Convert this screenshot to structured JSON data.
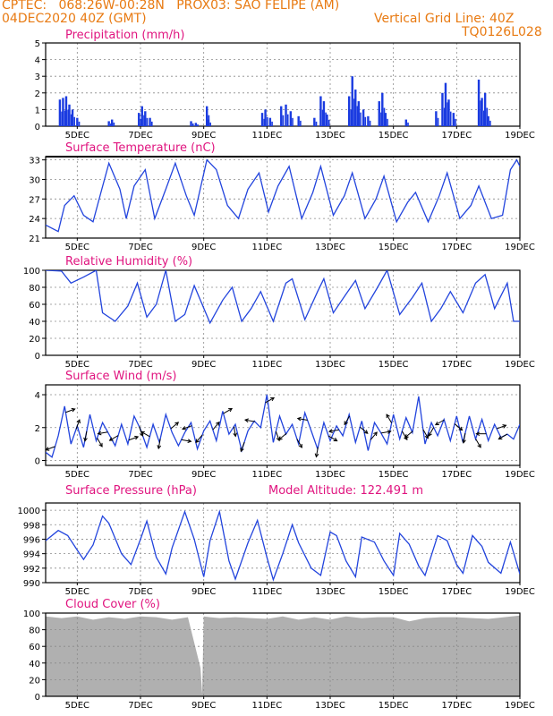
{
  "header": {
    "line1": "CPTEC:   068:26W-00:28N   PROX03: SAO FELIPE (AM)",
    "date": "04DEC2020 40Z (GMT)",
    "grid_line": "Vertical Grid Line: 40Z",
    "code": "TQ0126L028"
  },
  "colors": {
    "header": "#e87a12",
    "title": "#e0147f",
    "line": "#2244dd",
    "bar": "#1a3be0",
    "cloud": "#b0b0b0"
  },
  "x_ticks": [
    "5DEC",
    "7DEC",
    "9DEC",
    "11DEC",
    "13DEC",
    "15DEC",
    "17DEC",
    "19DEC"
  ],
  "chart_data": [
    {
      "type": "bar",
      "title": "Precipitation (mm/h)",
      "ylim": [
        0,
        5
      ],
      "yticks": [
        0,
        1,
        2,
        3,
        4,
        5
      ],
      "x_start": 4.0,
      "x_end": 19.0,
      "series": [
        {
          "x": [],
          "values": []
        }
      ],
      "peaks": [
        [
          4.45,
          1.6
        ],
        [
          4.55,
          1.7
        ],
        [
          4.65,
          1.8
        ],
        [
          4.75,
          1.3
        ],
        [
          4.85,
          1.0
        ],
        [
          5.0,
          0.5
        ],
        [
          6.0,
          0.3
        ],
        [
          6.1,
          0.4
        ],
        [
          6.95,
          0.8
        ],
        [
          7.05,
          1.2
        ],
        [
          7.15,
          0.9
        ],
        [
          7.3,
          0.5
        ],
        [
          8.6,
          0.3
        ],
        [
          8.75,
          0.2
        ],
        [
          9.1,
          1.2
        ],
        [
          9.15,
          0.4
        ],
        [
          10.85,
          0.8
        ],
        [
          10.95,
          1.0
        ],
        [
          11.1,
          0.5
        ],
        [
          11.45,
          1.2
        ],
        [
          11.6,
          1.3
        ],
        [
          11.75,
          0.9
        ],
        [
          12.0,
          0.6
        ],
        [
          12.5,
          0.5
        ],
        [
          12.7,
          1.8
        ],
        [
          12.8,
          1.5
        ],
        [
          12.9,
          0.7
        ],
        [
          13.6,
          1.8
        ],
        [
          13.7,
          3.0
        ],
        [
          13.8,
          2.2
        ],
        [
          13.9,
          1.5
        ],
        [
          14.05,
          1.0
        ],
        [
          14.2,
          0.6
        ],
        [
          14.55,
          1.5
        ],
        [
          14.65,
          2.0
        ],
        [
          14.75,
          0.8
        ],
        [
          15.4,
          0.4
        ],
        [
          16.35,
          0.9
        ],
        [
          16.55,
          2.0
        ],
        [
          16.65,
          2.6
        ],
        [
          16.75,
          1.6
        ],
        [
          16.9,
          0.8
        ],
        [
          17.7,
          2.8
        ],
        [
          17.8,
          1.7
        ],
        [
          17.9,
          2.0
        ],
        [
          18.0,
          0.6
        ]
      ]
    },
    {
      "type": "line",
      "title": "Surface Temperature (nC)",
      "ylim": [
        21,
        33.5
      ],
      "yticks": [
        21,
        24,
        27,
        30,
        33
      ],
      "x": [
        4.0,
        4.4,
        4.6,
        4.9,
        5.2,
        5.5,
        5.75,
        6.0,
        6.35,
        6.55,
        6.8,
        7.15,
        7.45,
        7.8,
        8.1,
        8.45,
        8.7,
        9.1,
        9.4,
        9.75,
        10.1,
        10.4,
        10.75,
        11.05,
        11.35,
        11.7,
        12.1,
        12.45,
        12.7,
        13.1,
        13.45,
        13.7,
        14.1,
        14.45,
        14.7,
        15.1,
        15.45,
        15.7,
        16.1,
        16.45,
        16.7,
        17.1,
        17.45,
        17.7,
        18.1,
        18.45,
        18.7,
        18.9,
        19.0
      ],
      "y": [
        23.0,
        22.0,
        26.0,
        27.5,
        24.5,
        23.5,
        28.0,
        32.5,
        28.5,
        24.0,
        29.0,
        31.5,
        24.0,
        28.5,
        32.5,
        27.5,
        24.5,
        33.0,
        31.5,
        26.0,
        24.0,
        28.5,
        31.0,
        25.0,
        29.0,
        32.0,
        24.0,
        28.0,
        32.0,
        24.5,
        27.5,
        31.0,
        24.0,
        27.0,
        30.5,
        23.5,
        26.5,
        28.0,
        23.5,
        27.5,
        31.0,
        24.0,
        26.0,
        29.0,
        24.0,
        24.5,
        31.5,
        33.0,
        32.0
      ]
    },
    {
      "type": "line",
      "title": "Relative Humidity (%)",
      "ylim": [
        0,
        100
      ],
      "yticks": [
        0,
        20,
        40,
        60,
        80,
        100
      ],
      "x": [
        4.0,
        4.5,
        4.8,
        5.2,
        5.6,
        5.8,
        6.2,
        6.6,
        6.9,
        7.2,
        7.5,
        7.8,
        8.1,
        8.4,
        8.7,
        9.2,
        9.6,
        9.9,
        10.2,
        10.5,
        10.8,
        11.2,
        11.6,
        11.8,
        12.2,
        12.6,
        12.8,
        13.1,
        13.5,
        13.8,
        14.1,
        14.5,
        14.8,
        15.2,
        15.6,
        15.9,
        16.2,
        16.5,
        16.8,
        17.2,
        17.6,
        17.9,
        18.2,
        18.6,
        18.8,
        19.0
      ],
      "y": [
        100,
        99,
        85,
        92,
        100,
        50,
        40,
        58,
        85,
        45,
        60,
        100,
        40,
        48,
        82,
        38,
        65,
        80,
        40,
        55,
        75,
        40,
        85,
        90,
        42,
        75,
        90,
        50,
        72,
        88,
        55,
        80,
        100,
        48,
        68,
        85,
        40,
        55,
        75,
        50,
        85,
        95,
        55,
        85,
        40,
        40
      ]
    },
    {
      "type": "line",
      "title": "Surface Wind (m/s)",
      "ylim": [
        -0.3,
        4.6
      ],
      "yticks": [
        0,
        2,
        4
      ],
      "x": [
        4.0,
        4.2,
        4.4,
        4.6,
        4.8,
        5.0,
        5.2,
        5.4,
        5.6,
        5.8,
        6.0,
        6.2,
        6.4,
        6.6,
        6.8,
        7.0,
        7.2,
        7.4,
        7.6,
        7.8,
        8.0,
        8.2,
        8.4,
        8.6,
        8.8,
        9.0,
        9.2,
        9.4,
        9.6,
        9.8,
        10.0,
        10.2,
        10.4,
        10.6,
        10.8,
        11.0,
        11.2,
        11.4,
        11.6,
        11.8,
        12.0,
        12.2,
        12.4,
        12.6,
        12.8,
        13.0,
        13.2,
        13.4,
        13.6,
        13.8,
        14.0,
        14.2,
        14.4,
        14.6,
        14.8,
        15.0,
        15.2,
        15.4,
        15.6,
        15.8,
        16.0,
        16.2,
        16.4,
        16.6,
        16.8,
        17.0,
        17.2,
        17.4,
        17.6,
        17.8,
        18.0,
        18.2,
        18.4,
        18.6,
        18.8,
        19.0
      ],
      "y": [
        0.5,
        0.2,
        1.5,
        3.3,
        1.0,
        2.1,
        0.8,
        2.8,
        1.2,
        2.3,
        1.6,
        0.9,
        2.2,
        1.0,
        2.7,
        1.9,
        0.8,
        2.2,
        1.1,
        2.8,
        1.7,
        0.9,
        1.7,
        2.3,
        0.7,
        1.8,
        2.4,
        1.2,
        3.0,
        1.6,
        2.2,
        0.6,
        1.8,
        2.4,
        2.0,
        4.0,
        1.1,
        2.7,
        1.6,
        2.2,
        1.0,
        2.9,
        1.8,
        0.7,
        2.3,
        1.2,
        2.1,
        1.5,
        2.8,
        1.1,
        2.4,
        0.6,
        2.3,
        1.7,
        1.0,
        2.8,
        1.3,
        2.6,
        1.7,
        3.9,
        1.0,
        2.3,
        1.5,
        2.5,
        1.2,
        2.7,
        1.1,
        2.7,
        1.3,
        2.5,
        1.2,
        2.2,
        1.4,
        1.6,
        1.3,
        2.2
      ],
      "arrows_deg": [
        200,
        20,
        70,
        260,
        300,
        190,
        210,
        20,
        290,
        150,
        260,
        40,
        350,
        200,
        230,
        50,
        30,
        280,
        250,
        170,
        30,
        290,
        220,
        300,
        170,
        260,
        330,
        190,
        240,
        320,
        50,
        10,
        120,
        300,
        220,
        300,
        240,
        210,
        320,
        260,
        300,
        180,
        20,
        210
      ]
    },
    {
      "type": "line",
      "title": "Surface Pressure (hPa)",
      "annotation": "Model Altitude: 122.491 m",
      "ylim": [
        990,
        1001
      ],
      "yticks": [
        990,
        992,
        994,
        996,
        998,
        1000
      ],
      "x": [
        4.0,
        4.4,
        4.7,
        5.0,
        5.2,
        5.5,
        5.8,
        6.0,
        6.4,
        6.7,
        7.0,
        7.2,
        7.5,
        7.8,
        8.0,
        8.4,
        8.7,
        9.0,
        9.2,
        9.5,
        9.8,
        10.0,
        10.4,
        10.7,
        11.0,
        11.2,
        11.5,
        11.8,
        12.0,
        12.4,
        12.7,
        13.0,
        13.2,
        13.5,
        13.8,
        14.0,
        14.4,
        14.7,
        15.0,
        15.2,
        15.5,
        15.8,
        16.0,
        16.4,
        16.7,
        17.0,
        17.2,
        17.5,
        17.8,
        18.0,
        18.4,
        18.7,
        19.0
      ],
      "y": [
        995.8,
        997.2,
        996.5,
        994.5,
        993.2,
        995.2,
        999.2,
        998.2,
        994.0,
        992.5,
        996.0,
        998.5,
        993.5,
        991.2,
        994.8,
        999.8,
        996.0,
        990.8,
        995.8,
        999.8,
        993.0,
        990.5,
        995.5,
        998.6,
        993.5,
        990.4,
        994.0,
        998.0,
        995.5,
        992.0,
        991.0,
        997.0,
        996.5,
        993.0,
        990.8,
        996.3,
        995.6,
        993.0,
        991.0,
        996.8,
        995.3,
        992.3,
        991.0,
        996.5,
        995.8,
        992.5,
        991.3,
        996.5,
        995.0,
        992.8,
        991.3,
        995.6,
        991.2
      ]
    },
    {
      "type": "area",
      "title": "Cloud Cover (%)",
      "ylim": [
        0,
        100
      ],
      "yticks": [
        0,
        20,
        40,
        60,
        80,
        100
      ],
      "x": [
        4.0,
        4.5,
        5.0,
        5.5,
        6.0,
        6.5,
        7.0,
        7.5,
        8.0,
        8.5,
        8.9,
        8.95,
        9.0,
        9.2,
        9.5,
        10.0,
        10.5,
        11.0,
        11.5,
        12.0,
        12.5,
        13.0,
        13.5,
        14.0,
        14.5,
        15.0,
        15.5,
        16.0,
        16.5,
        17.0,
        17.5,
        18.0,
        18.5,
        19.0
      ],
      "y": [
        96,
        94,
        96,
        92,
        95,
        93,
        96,
        95,
        92,
        95,
        34,
        3,
        96,
        95,
        94,
        95,
        94,
        93,
        96,
        92,
        95,
        92,
        96,
        94,
        95,
        95,
        90,
        94,
        95,
        95,
        94,
        93,
        95,
        97
      ]
    }
  ]
}
